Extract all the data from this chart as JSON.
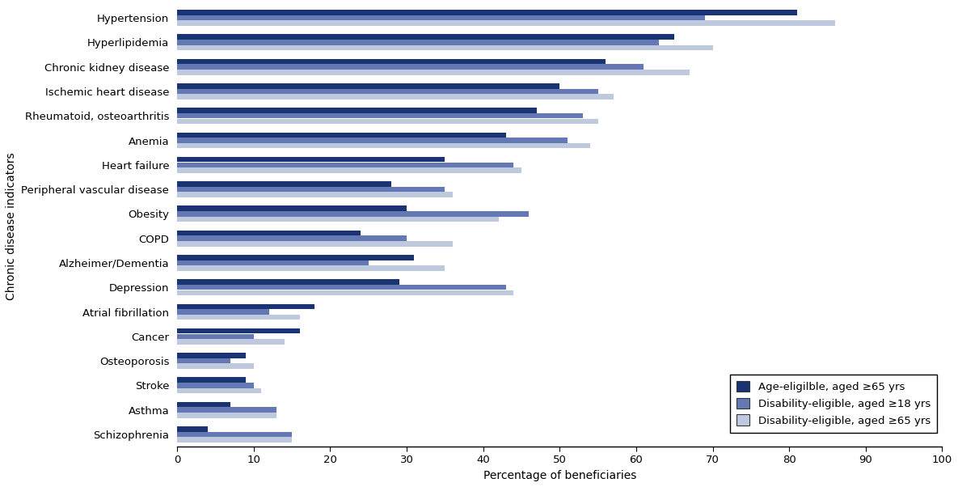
{
  "categories": [
    "Hypertension",
    "Hyperlipidemia",
    "Chronic kidney disease",
    "Ischemic heart disease",
    "Rheumatoid, osteoarthritis",
    "Anemia",
    "Heart failure",
    "Peripheral vascular disease",
    "Obesity",
    "COPD",
    "Alzheimer/Dementia",
    "Depression",
    "Atrial fibrillation",
    "Cancer",
    "Osteoporosis",
    "Stroke",
    "Asthma",
    "Schizophrenia"
  ],
  "age_eligible": [
    81,
    65,
    56,
    50,
    47,
    43,
    35,
    28,
    30,
    24,
    31,
    29,
    18,
    16,
    9,
    9,
    7,
    4
  ],
  "disability_18": [
    69,
    63,
    61,
    55,
    53,
    51,
    44,
    35,
    46,
    30,
    25,
    43,
    12,
    10,
    7,
    10,
    13,
    15
  ],
  "disability_65": [
    86,
    70,
    67,
    57,
    55,
    54,
    45,
    36,
    42,
    36,
    35,
    44,
    16,
    14,
    10,
    11,
    13,
    15
  ],
  "color_age": "#1a3473",
  "color_dis18": "#6478b4",
  "color_dis65": "#bfc9dd",
  "xlabel": "Percentage of beneficiaries",
  "ylabel": "Chronic disease indicators",
  "xlim": [
    0,
    100
  ],
  "xticks": [
    0,
    10,
    20,
    30,
    40,
    50,
    60,
    70,
    80,
    90,
    100
  ],
  "legend_labels": [
    "Age-eligilble, aged ≥65 yrs",
    "Disability-eligible, aged ≥18 yrs",
    "Disability-eligible, aged ≥65 yrs"
  ],
  "bar_height": 0.22,
  "figsize": [
    11.85,
    6.02
  ],
  "dpi": 100
}
